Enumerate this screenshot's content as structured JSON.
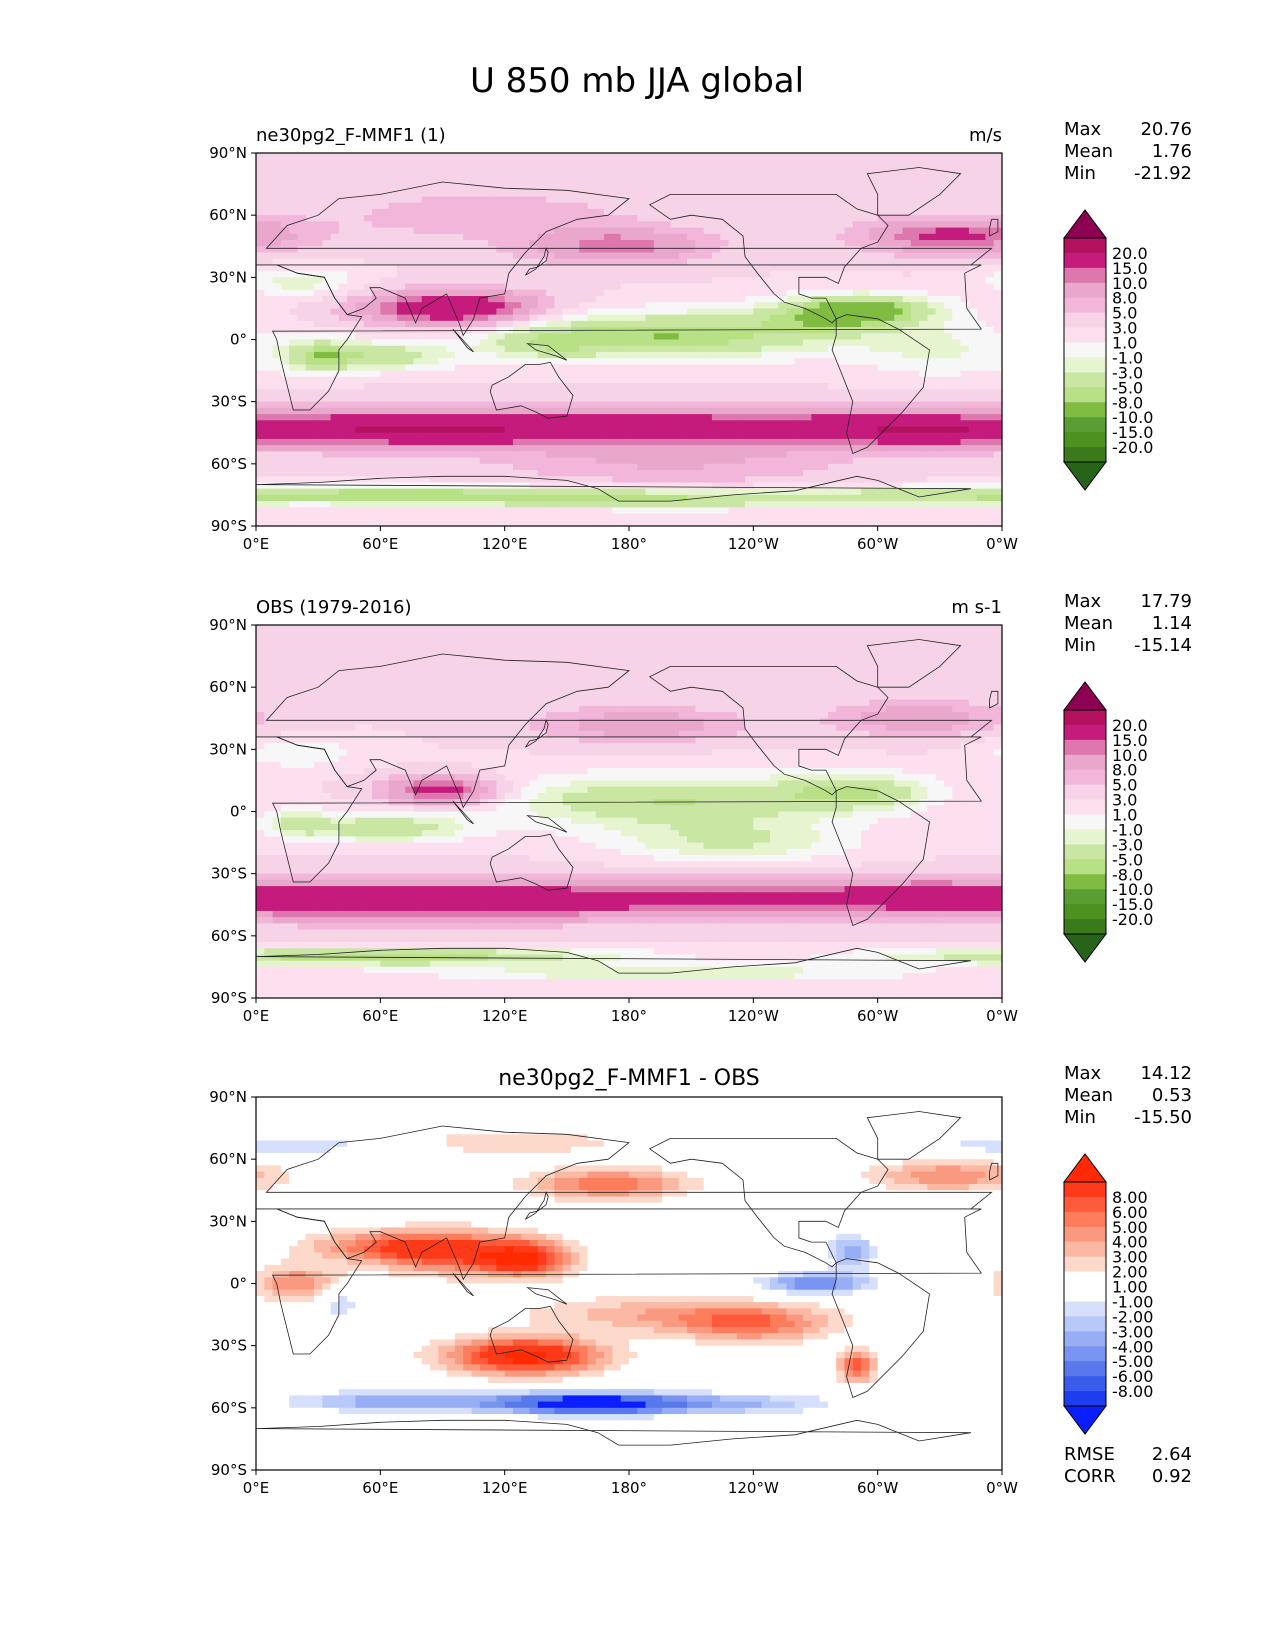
{
  "title": "U 850 mb JJA global",
  "chart_data": [
    {
      "type": "heatmap",
      "title": "ne30pg2_F-MMF1 (1)",
      "units": "m/s",
      "xticks": [
        "0°E",
        "60°E",
        "120°E",
        "180°",
        "120°W",
        "60°W",
        "0°W"
      ],
      "yticks": [
        "90°N",
        "60°N",
        "30°N",
        "0°",
        "30°S",
        "60°S",
        "90°S"
      ],
      "xlim": [
        0,
        360
      ],
      "ylim": [
        -90,
        90
      ],
      "stats": [
        {
          "label": "Max",
          "value": "20.76"
        },
        {
          "label": "Mean",
          "value": "1.76"
        },
        {
          "label": "Min",
          "value": "-21.92"
        }
      ],
      "colorbar": {
        "levels": [
          "20.0",
          "15.0",
          "10.0",
          "8.0",
          "5.0",
          "3.0",
          "1.0",
          "-1.0",
          "-3.0",
          "-5.0",
          "-8.0",
          "-10.0",
          "-15.0",
          "-20.0"
        ],
        "colors": [
          "#8e0152",
          "#b4125f",
          "#c51b7d",
          "#de77ae",
          "#eaa7cc",
          "#f1b6da",
          "#f6d3e7",
          "#fde0ef",
          "#f7f7f7",
          "#e6f5d0",
          "#c9e6a3",
          "#b8e186",
          "#7fbc41",
          "#5a9d32",
          "#4d9221",
          "#3a7a1c",
          "#276419"
        ]
      }
    },
    {
      "type": "heatmap",
      "title": "OBS (1979-2016)",
      "units": "m s-1",
      "xticks": [
        "0°E",
        "60°E",
        "120°E",
        "180°",
        "120°W",
        "60°W",
        "0°W"
      ],
      "yticks": [
        "90°N",
        "60°N",
        "30°N",
        "0°",
        "30°S",
        "60°S",
        "90°S"
      ],
      "xlim": [
        0,
        360
      ],
      "ylim": [
        -90,
        90
      ],
      "stats": [
        {
          "label": "Max",
          "value": "17.79"
        },
        {
          "label": "Mean",
          "value": "1.14"
        },
        {
          "label": "Min",
          "value": "-15.14"
        }
      ],
      "colorbar": {
        "levels": [
          "20.0",
          "15.0",
          "10.0",
          "8.0",
          "5.0",
          "3.0",
          "1.0",
          "-1.0",
          "-3.0",
          "-5.0",
          "-8.0",
          "-10.0",
          "-15.0",
          "-20.0"
        ],
        "colors": [
          "#8e0152",
          "#b4125f",
          "#c51b7d",
          "#de77ae",
          "#eaa7cc",
          "#f1b6da",
          "#f6d3e7",
          "#fde0ef",
          "#f7f7f7",
          "#e6f5d0",
          "#c9e6a3",
          "#b8e186",
          "#7fbc41",
          "#5a9d32",
          "#4d9221",
          "#3a7a1c",
          "#276419"
        ]
      }
    },
    {
      "type": "heatmap",
      "title": "ne30pg2_F-MMF1 - OBS",
      "units": "",
      "xticks": [
        "0°E",
        "60°E",
        "120°E",
        "180°",
        "120°W",
        "60°W",
        "0°W"
      ],
      "yticks": [
        "90°N",
        "60°N",
        "30°N",
        "0°",
        "30°S",
        "60°S",
        "90°S"
      ],
      "xlim": [
        0,
        360
      ],
      "ylim": [
        -90,
        90
      ],
      "stats": [
        {
          "label": "Max",
          "value": "14.12"
        },
        {
          "label": "Mean",
          "value": "0.53"
        },
        {
          "label": "Min",
          "value": "-15.50"
        }
      ],
      "extra_stats": [
        {
          "label": "RMSE",
          "value": "2.64"
        },
        {
          "label": "CORR",
          "value": "0.92"
        }
      ],
      "colorbar": {
        "levels": [
          "8.00",
          "6.00",
          "5.00",
          "4.00",
          "3.00",
          "2.00",
          "1.00",
          "-1.00",
          "-2.00",
          "-3.00",
          "-4.00",
          "-5.00",
          "-6.00",
          "-8.00"
        ],
        "colors": [
          "#ff2a00",
          "#ff3a18",
          "#fe5a3c",
          "#fc7c5c",
          "#f99a80",
          "#fbb9a4",
          "#fdd9cc",
          "#ffffff",
          "#ffffff",
          "#d6e0fc",
          "#b8c8f8",
          "#98aef4",
          "#7894f0",
          "#5878ec",
          "#3a5cea",
          "#1e3cf0",
          "#0a1eff"
        ]
      }
    }
  ],
  "fields": {
    "model": {
      "base": 1.0,
      "blobs": [
        {
          "lon": 180,
          "lat": -42,
          "sx": 240,
          "sy": 7,
          "a": 11
        },
        {
          "lon": 70,
          "lat": -45,
          "sx": 60,
          "sy": 5,
          "a": 5
        },
        {
          "lon": 320,
          "lat": -45,
          "sx": 35,
          "sy": 5,
          "a": 5
        },
        {
          "lon": 200,
          "lat": -60,
          "sx": 60,
          "sy": 8,
          "a": 4
        },
        {
          "lon": 95,
          "lat": 15,
          "sx": 30,
          "sy": 6,
          "a": 14
        },
        {
          "lon": 175,
          "lat": 45,
          "sx": 30,
          "sy": 6,
          "a": 8
        },
        {
          "lon": 335,
          "lat": 50,
          "sx": 30,
          "sy": 6,
          "a": 10
        },
        {
          "lon": 200,
          "lat": 2,
          "sx": 55,
          "sy": 8,
          "a": -11
        },
        {
          "lon": 280,
          "lat": 12,
          "sx": 25,
          "sy": 6,
          "a": -9
        },
        {
          "lon": 300,
          "lat": 15,
          "sx": 25,
          "sy": 5,
          "a": -7
        },
        {
          "lon": 30,
          "lat": -8,
          "sx": 12,
          "sy": 6,
          "a": -7
        },
        {
          "lon": 60,
          "lat": -8,
          "sx": 25,
          "sy": 5,
          "a": -8
        },
        {
          "lon": 140,
          "lat": -2,
          "sx": 20,
          "sy": 6,
          "a": -5
        },
        {
          "lon": 60,
          "lat": -75,
          "sx": 120,
          "sy": 3,
          "a": -10
        },
        {
          "lon": 210,
          "lat": -78,
          "sx": 90,
          "sy": 3,
          "a": -6
        },
        {
          "lon": 20,
          "lat": 28,
          "sx": 20,
          "sy": 5,
          "a": -5
        },
        {
          "lon": 330,
          "lat": -5,
          "sx": 30,
          "sy": 10,
          "a": -4
        },
        {
          "lon": 110,
          "lat": 60,
          "sx": 60,
          "sy": 10,
          "a": 3
        }
      ]
    },
    "obs": {
      "base": 1.0,
      "blobs": [
        {
          "lon": 180,
          "lat": -42,
          "sx": 240,
          "sy": 7,
          "a": 10
        },
        {
          "lon": 70,
          "lat": -45,
          "sx": 60,
          "sy": 6,
          "a": 5
        },
        {
          "lon": 330,
          "lat": -40,
          "sx": 35,
          "sy": 5,
          "a": 4
        },
        {
          "lon": 90,
          "lat": 10,
          "sx": 20,
          "sy": 5,
          "a": 12
        },
        {
          "lon": 185,
          "lat": 42,
          "sx": 35,
          "sy": 6,
          "a": 6
        },
        {
          "lon": 320,
          "lat": 45,
          "sx": 30,
          "sy": 6,
          "a": 6
        },
        {
          "lon": 200,
          "lat": 5,
          "sx": 60,
          "sy": 9,
          "a": -9
        },
        {
          "lon": 290,
          "lat": 10,
          "sx": 25,
          "sy": 6,
          "a": -8
        },
        {
          "lon": 60,
          "lat": -8,
          "sx": 30,
          "sy": 5,
          "a": -8
        },
        {
          "lon": 20,
          "lat": -5,
          "sx": 10,
          "sy": 5,
          "a": -5
        },
        {
          "lon": 230,
          "lat": -15,
          "sx": 40,
          "sy": 7,
          "a": -6
        },
        {
          "lon": 60,
          "lat": -70,
          "sx": 80,
          "sy": 3,
          "a": -11
        },
        {
          "lon": 200,
          "lat": -78,
          "sx": 80,
          "sy": 3,
          "a": -6
        },
        {
          "lon": 20,
          "lat": 28,
          "sx": 20,
          "sy": 5,
          "a": -4
        }
      ]
    },
    "diff": {
      "base": 0.0,
      "blobs": [
        {
          "lon": 130,
          "lat": -35,
          "sx": 25,
          "sy": 6,
          "a": 9
        },
        {
          "lon": 95,
          "lat": 15,
          "sx": 25,
          "sy": 7,
          "a": 6
        },
        {
          "lon": 130,
          "lat": 12,
          "sx": 15,
          "sy": 6,
          "a": 7
        },
        {
          "lon": 170,
          "lat": 48,
          "sx": 25,
          "sy": 5,
          "a": 5
        },
        {
          "lon": 335,
          "lat": 52,
          "sx": 25,
          "sy": 5,
          "a": 4
        },
        {
          "lon": 60,
          "lat": 18,
          "sx": 25,
          "sy": 5,
          "a": 4
        },
        {
          "lon": 200,
          "lat": -15,
          "sx": 45,
          "sy": 6,
          "a": 3
        },
        {
          "lon": 240,
          "lat": -20,
          "sx": 25,
          "sy": 6,
          "a": 4
        },
        {
          "lon": 290,
          "lat": -40,
          "sx": 6,
          "sy": 5,
          "a": 6
        },
        {
          "lon": 20,
          "lat": 0,
          "sx": 15,
          "sy": 6,
          "a": 4
        },
        {
          "lon": 160,
          "lat": -58,
          "sx": 30,
          "sy": 4,
          "a": -9
        },
        {
          "lon": 70,
          "lat": -57,
          "sx": 40,
          "sy": 4,
          "a": -5
        },
        {
          "lon": 230,
          "lat": -58,
          "sx": 40,
          "sy": 4,
          "a": -4
        },
        {
          "lon": 270,
          "lat": 0,
          "sx": 20,
          "sy": 4,
          "a": -6
        },
        {
          "lon": 288,
          "lat": 15,
          "sx": 8,
          "sy": 6,
          "a": -5
        },
        {
          "lon": 15,
          "lat": 67,
          "sx": 40,
          "sy": 4,
          "a": -3
        },
        {
          "lon": 230,
          "lat": 22,
          "sx": 30,
          "sy": 4,
          "a": -2
        },
        {
          "lon": 40,
          "lat": -10,
          "sx": 8,
          "sy": 6,
          "a": -3
        },
        {
          "lon": 120,
          "lat": 68,
          "sx": 40,
          "sy": 4,
          "a": 2
        }
      ]
    }
  }
}
